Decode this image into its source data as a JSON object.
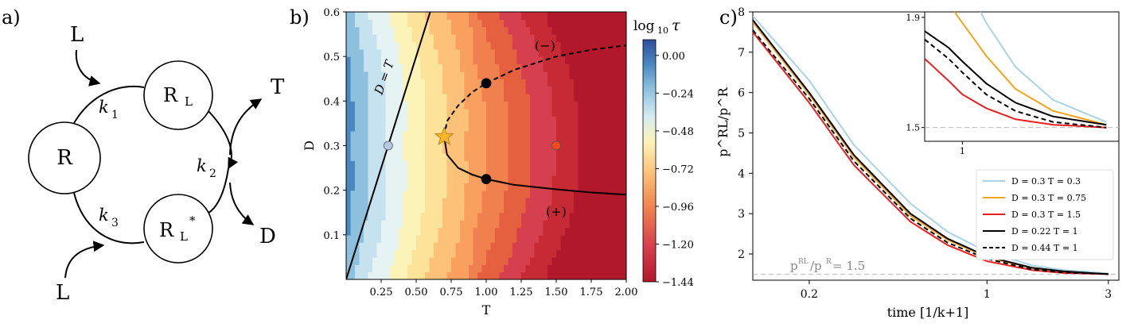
{
  "figure": {
    "panel_a": {
      "label": "a)",
      "nodes": {
        "R": "R",
        "RL": "R",
        "RL_sub": "L",
        "RLs": "R",
        "RLs_sub": "L",
        "RLs_sup": "*"
      },
      "species": {
        "L_top": "L",
        "L_bottom": "L",
        "T": "T",
        "D": "D"
      },
      "rates": {
        "k1": "k",
        "k1_sub": "1",
        "k2": "k",
        "k2_sub": "2",
        "k3": "k",
        "k3_sub": "3"
      }
    },
    "panel_b": {
      "label": "b)",
      "line_label": "D = T",
      "minus_label": "(−)",
      "plus_label": "(+)",
      "colorbar_title": "log",
      "colorbar_title_sub": "10",
      "colorbar_title_var": "τ",
      "colorbar_ticks": [
        "0.00",
        "−0.24",
        "−0.48",
        "−0.72",
        "−0.96",
        "−1.20",
        "−1.44"
      ]
    },
    "panel_c": {
      "label": "c)",
      "ref_label": "p",
      "ref_sup1": "RL",
      "ref_mid": "/p",
      "ref_sup2": "R",
      "ref_value": " = 1.5",
      "inset_yticks": [
        "1.9",
        "1.5"
      ],
      "inset_xticks": [
        "1"
      ]
    }
  },
  "chart_data": [
    {
      "type": "heatmap",
      "title": "",
      "xlabel": "T",
      "ylabel": "D",
      "xlim": [
        0.0,
        2.0
      ],
      "ylim": [
        0.0,
        0.6
      ],
      "xticks": [
        "0.25",
        "0.50",
        "0.75",
        "1.00",
        "1.25",
        "1.50",
        "1.75",
        "2.00"
      ],
      "yticks": [
        "0.1",
        "0.2",
        "0.3",
        "0.4",
        "0.5",
        "0.6"
      ],
      "colorbar": {
        "label": "log10 τ",
        "range": [
          -1.44,
          0.1
        ]
      },
      "critical_point": {
        "T": 0.7,
        "D": 0.32,
        "marker": "star"
      },
      "points": [
        {
          "T": 0.3,
          "D": 0.3,
          "color": "#b8c8e0"
        },
        {
          "T": 1.0,
          "D": 0.44,
          "color": "#000000"
        },
        {
          "T": 1.0,
          "D": 0.225,
          "color": "#000000"
        },
        {
          "T": 1.5,
          "D": 0.3,
          "color": "#ee4a1c"
        }
      ],
      "lines": [
        {
          "name": "D = T",
          "style": "solid",
          "x": [
            0.0,
            0.6
          ],
          "y": [
            0.0,
            0.6
          ]
        },
        {
          "name": "(−)",
          "style": "dashed",
          "x": [
            0.7,
            0.72,
            0.8,
            0.9,
            1.0,
            1.2,
            1.5,
            1.75,
            2.0
          ],
          "y": [
            0.32,
            0.355,
            0.39,
            0.42,
            0.44,
            0.47,
            0.5,
            0.515,
            0.525
          ]
        },
        {
          "name": "(+)",
          "style": "solid",
          "x": [
            0.7,
            0.72,
            0.8,
            0.9,
            1.0,
            1.2,
            1.5,
            1.75,
            2.0
          ],
          "y": [
            0.32,
            0.28,
            0.25,
            0.235,
            0.225,
            0.212,
            0.202,
            0.195,
            0.19
          ]
        }
      ]
    },
    {
      "type": "line",
      "title": "",
      "xlabel": "time [1/k+1]",
      "ylabel": "p^RL/p^R",
      "xscale": "log",
      "xlim": [
        0.12,
        3.3
      ],
      "ylim": [
        1.35,
        8.0
      ],
      "xticks": [
        "0.2",
        "1",
        "3"
      ],
      "yticks": [
        "2",
        "3",
        "4",
        "5",
        "6",
        "7",
        "8"
      ],
      "legend_position": "lower-right",
      "reference_line": {
        "y": 1.5
      },
      "series": [
        {
          "name": "D = 0.3 T = 0.3",
          "color": "#a8d4e6",
          "style": "solid",
          "x": [
            0.12,
            0.2,
            0.3,
            0.5,
            0.7,
            1.0,
            1.5,
            2.0,
            3.0
          ],
          "y": [
            7.9,
            6.3,
            4.7,
            3.25,
            2.55,
            2.05,
            1.72,
            1.6,
            1.52
          ]
        },
        {
          "name": "D = 0.3 T = 0.75",
          "color": "#f5a41a",
          "style": "solid",
          "x": [
            0.12,
            0.2,
            0.3,
            0.5,
            0.7,
            1.0,
            1.5,
            2.0,
            3.0
          ],
          "y": [
            7.75,
            5.95,
            4.4,
            2.95,
            2.35,
            1.92,
            1.65,
            1.56,
            1.5
          ]
        },
        {
          "name": "D = 0.3 T = 1.5",
          "color": "#e82020",
          "style": "solid",
          "x": [
            0.12,
            0.2,
            0.3,
            0.5,
            0.7,
            1.0,
            1.5,
            2.0,
            3.0
          ],
          "y": [
            7.5,
            5.75,
            4.2,
            2.8,
            2.22,
            1.82,
            1.6,
            1.53,
            1.5
          ]
        },
        {
          "name": "D = 0.22 T = 1",
          "color": "#000000",
          "style": "solid",
          "x": [
            0.12,
            0.2,
            0.3,
            0.5,
            0.7,
            1.0,
            1.5,
            2.0,
            3.0
          ],
          "y": [
            7.8,
            6.0,
            4.45,
            3.0,
            2.38,
            1.94,
            1.66,
            1.57,
            1.5
          ]
        },
        {
          "name": "D = 0.44 T = 1",
          "color": "#000000",
          "style": "dashed",
          "x": [
            0.12,
            0.2,
            0.3,
            0.5,
            0.7,
            1.0,
            1.5,
            2.0,
            3.0
          ],
          "y": [
            7.55,
            5.85,
            4.3,
            2.88,
            2.28,
            1.88,
            1.62,
            1.54,
            1.5
          ]
        }
      ]
    }
  ]
}
